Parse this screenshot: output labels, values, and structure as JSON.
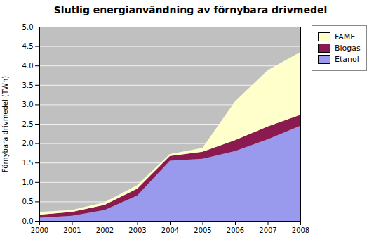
{
  "chart_data": {
    "type": "area",
    "stacked": true,
    "title": "Slutlig energianvändning av förnybara drivmedel",
    "ylabel": "Förnybara drivmedel (TWh)",
    "x": [
      2000,
      2001,
      2002,
      2003,
      2004,
      2005,
      2006,
      2007,
      2008
    ],
    "xlim": [
      2000,
      2008
    ],
    "xticks": [
      2000,
      2001,
      2002,
      2003,
      2004,
      2005,
      2006,
      2007,
      2008
    ],
    "series": [
      {
        "name": "Etanol",
        "color": "#9999ee",
        "values": [
          0.08,
          0.13,
          0.28,
          0.65,
          1.55,
          1.6,
          1.8,
          2.1,
          2.45
        ]
      },
      {
        "name": "Biogas",
        "color": "#8b1a50",
        "values": [
          0.08,
          0.1,
          0.13,
          0.18,
          0.12,
          0.18,
          0.28,
          0.33,
          0.28
        ]
      },
      {
        "name": "FAME",
        "color": "#ffffcc",
        "values": [
          0.07,
          0.05,
          0.07,
          0.09,
          0.05,
          0.1,
          1.0,
          1.45,
          1.62
        ]
      }
    ],
    "ylim": [
      0,
      5
    ],
    "yticks": [
      {
        "value": 0,
        "label": "0.0"
      },
      0.5,
      {
        "value": 1.0,
        "label": "1.0"
      },
      1.5,
      {
        "value": 2.0,
        "label": "2.0"
      },
      2.5,
      {
        "value": 3.0,
        "label": "3.0"
      },
      3.5,
      {
        "value": 4.0,
        "label": "4.0"
      },
      4.5,
      {
        "value": 5.0,
        "label": "5.0"
      }
    ],
    "grid": true,
    "legend": "right"
  }
}
